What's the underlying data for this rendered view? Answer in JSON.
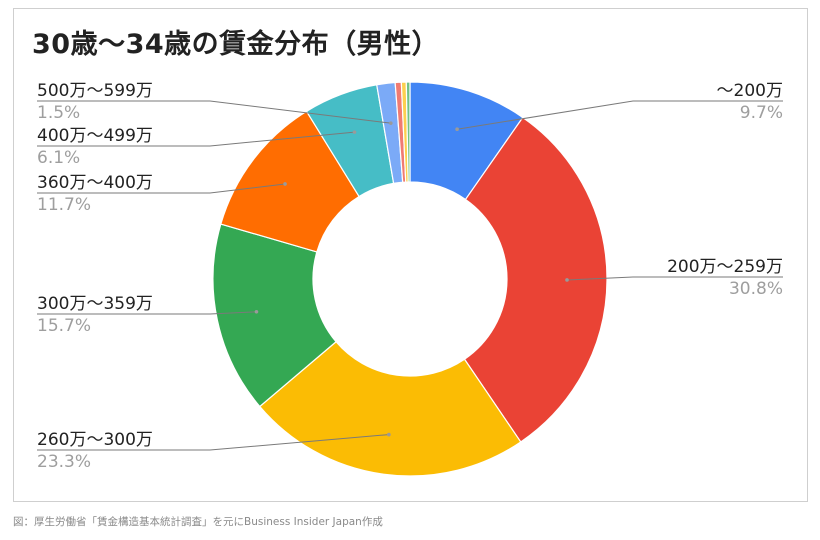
{
  "title": "30歳〜34歳の賃金分布（男性）",
  "caption": "図：厚生労働省「賃金構造基本統計調査」を元にBusiness Insider Japan作成",
  "chart_data": {
    "type": "pie",
    "donut": true,
    "title": "30歳〜34歳の賃金分布（男性）",
    "slices": [
      {
        "label": "〜200万",
        "value": 9.7,
        "value_label": "9.7%",
        "color": "#4285f4"
      },
      {
        "label": "200万〜259万",
        "value": 30.8,
        "value_label": "30.8%",
        "color": "#ea4335"
      },
      {
        "label": "260万〜300万",
        "value": 23.3,
        "value_label": "23.3%",
        "color": "#fbbc04"
      },
      {
        "label": "300万〜359万",
        "value": 15.7,
        "value_label": "15.7%",
        "color": "#34a853"
      },
      {
        "label": "360万〜400万",
        "value": 11.7,
        "value_label": "11.7%",
        "color": "#ff6d01"
      },
      {
        "label": "400万〜499万",
        "value": 6.1,
        "value_label": "6.1%",
        "color": "#46bdc6"
      },
      {
        "label": "500万〜599万",
        "value": 1.5,
        "value_label": "1.5%",
        "color": "#7baaf7"
      },
      {
        "value": 0.5,
        "color": "#f07b72"
      },
      {
        "value": 0.4,
        "color": "#fcd04f"
      },
      {
        "value": 0.3,
        "color": "#71c287"
      }
    ]
  }
}
